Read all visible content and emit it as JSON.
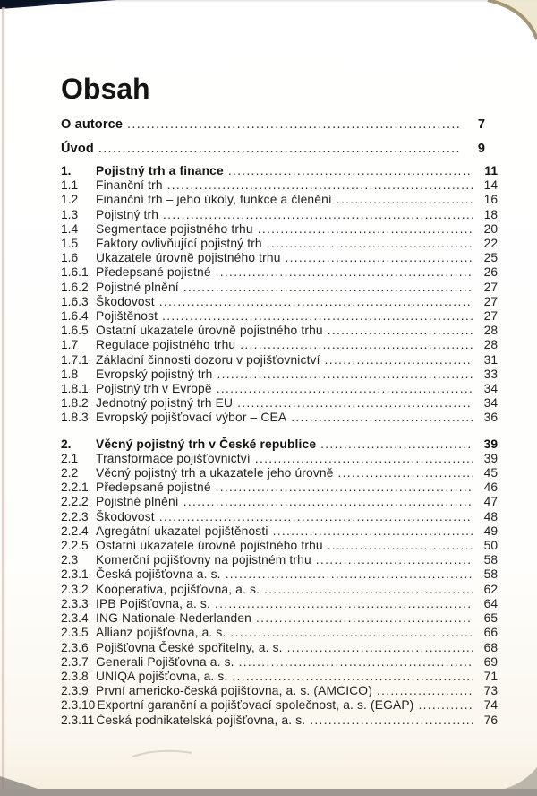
{
  "document": {
    "title": "Obsah",
    "front_matter": [
      {
        "label": "O autorce",
        "page": "7",
        "bold": true
      },
      {
        "label": "Úvod",
        "page": "9",
        "bold": true
      }
    ],
    "sections": [
      {
        "rows": [
          {
            "num": "1.",
            "label": "Pojistný trh a finance",
            "page": "11",
            "bold": true
          },
          {
            "num": "1.1",
            "label": "Finanční trh",
            "page": "14"
          },
          {
            "num": "1.2",
            "label": "Finanční trh – jeho úkoly, funkce a členění",
            "page": "16"
          },
          {
            "num": "1.3",
            "label": "Pojistný trh",
            "page": "18"
          },
          {
            "num": "1.4",
            "label": "Segmentace pojistného trhu",
            "page": "20"
          },
          {
            "num": "1.5",
            "label": "Faktory ovlivňující pojistný trh",
            "page": "22"
          },
          {
            "num": "1.6",
            "label": "Ukazatele úrovně pojistného trhu",
            "page": "25"
          },
          {
            "num": "1.6.1",
            "label": "Předepsané pojistné",
            "page": "26"
          },
          {
            "num": "1.6.2",
            "label": "Pojistné plnění",
            "page": "27"
          },
          {
            "num": "1.6.3",
            "label": "Škodovost",
            "page": "27"
          },
          {
            "num": "1.6.4",
            "label": "Pojištěnost",
            "page": "27"
          },
          {
            "num": "1.6.5",
            "label": "Ostatní ukazatele úrovně pojistného trhu",
            "page": "28"
          },
          {
            "num": "1.7",
            "label": "Regulace pojistného trhu",
            "page": "28"
          },
          {
            "num": "1.7.1",
            "label": "Základní činnosti dozoru v pojišťovnictví",
            "page": "31"
          },
          {
            "num": "1.8",
            "label": "Evropský pojistný trh",
            "page": "33"
          },
          {
            "num": "1.8.1",
            "label": "Pojistný trh v Evropě",
            "page": "34"
          },
          {
            "num": "1.8.2",
            "label": "Jednotný pojistný trh EU",
            "page": "34"
          },
          {
            "num": "1.8.3",
            "label": "Evropský pojišťovací výbor – CEA",
            "page": "36"
          }
        ]
      },
      {
        "rows": [
          {
            "num": "2.",
            "label": "Věcný pojistný trh v České republice",
            "page": "39",
            "bold": true
          },
          {
            "num": "2.1",
            "label": "Transformace pojišťovnictví",
            "page": "39"
          },
          {
            "num": "2.2",
            "label": "Věcný pojistný trh a ukazatele jeho úrovně",
            "page": "45"
          },
          {
            "num": "2.2.1",
            "label": "Předepsané pojistné",
            "page": "46"
          },
          {
            "num": "2.2.2",
            "label": "Pojistné plnění",
            "page": "47"
          },
          {
            "num": "2.2.3",
            "label": "Škodovost",
            "page": "48"
          },
          {
            "num": "2.2.4",
            "label": "Agregátní ukazatel pojištěnosti",
            "page": "49"
          },
          {
            "num": "2.2.5",
            "label": "Ostatní ukazatele úrovně pojistného trhu",
            "page": "50"
          },
          {
            "num": "2.3",
            "label": "Komerční pojišťovny na pojistném trhu",
            "page": "58"
          },
          {
            "num": "2.3.1",
            "label": "Česká pojišťovna a. s.",
            "page": "58"
          },
          {
            "num": "2.3.2",
            "label": "Kooperativa, pojišťovna, a. s.",
            "page": "62"
          },
          {
            "num": "2.3.3",
            "label": "IPB Pojišťovna, a. s.",
            "page": "64"
          },
          {
            "num": "2.3.4",
            "label": "ING Nationale-Nederlanden",
            "page": "65"
          },
          {
            "num": "2.3.5",
            "label": "Allianz pojišťovna, a. s.",
            "page": "66"
          },
          {
            "num": "2.3.6",
            "label": "Pojišťovna České spořitelny, a. s.",
            "page": "68"
          },
          {
            "num": "2.3.7",
            "label": "Generali Pojišťovna a. s.",
            "page": "69"
          },
          {
            "num": "2.3.8",
            "label": "UNIQA pojišťovna, a. s.",
            "page": "71"
          },
          {
            "num": "2.3.9",
            "label": "První americko-česká pojišťovna, a. s. (AMCICO)",
            "page": "73"
          },
          {
            "num": "2.3.10",
            "label": "Exportní garanční a pojišťovací společnost, a. s. (EGAP)",
            "page": "74"
          },
          {
            "num": "2.3.11",
            "label": "Česká podnikatelská pojišťovna, a. s.",
            "page": "76"
          }
        ]
      }
    ]
  },
  "colors": {
    "ink": "#1f1f1f",
    "page_background": "#fdfdfb",
    "top_edge_navy": "#0f1b2e",
    "corner_tan": "#8f7f55",
    "bottom_strip_gray": "#9c978f",
    "left_edge_pink": "#d9bcb4"
  }
}
